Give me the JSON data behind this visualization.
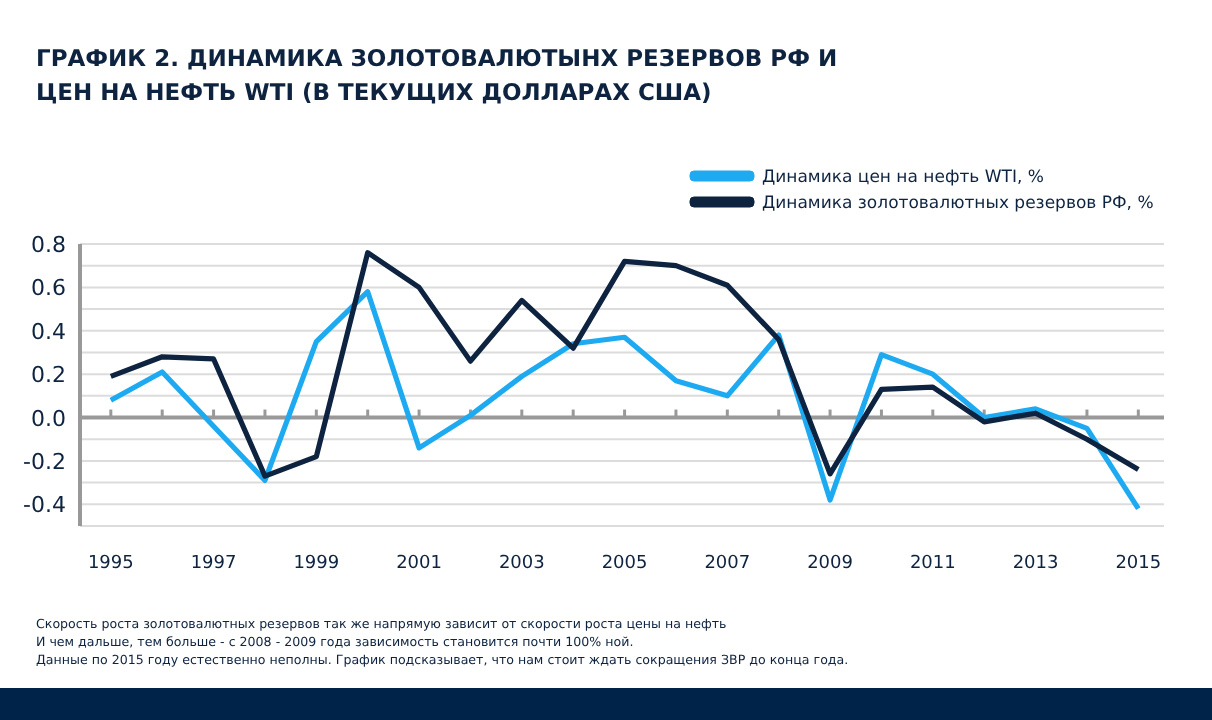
{
  "chart_data": {
    "type": "line",
    "title": "ГРАФИК 2. ДИНАМИКА ЗОЛОТОВАЛЮТЫНХ РЕЗЕРВОВ РФ И\nЦЕН НА НЕФТЬ WTI (В ТЕКУЩИХ ДОЛЛАРАХ США)",
    "x": [
      1995,
      1996,
      1997,
      1998,
      1999,
      2000,
      2001,
      2002,
      2003,
      2004,
      2005,
      2006,
      2007,
      2008,
      2009,
      2010,
      2011,
      2012,
      2013,
      2014,
      2015
    ],
    "series": [
      {
        "name": "Динамика цен на нефть WTI, %",
        "color": "#1eaaf1",
        "values": [
          0.08,
          0.21,
          -0.04,
          -0.29,
          0.35,
          0.58,
          -0.14,
          0.01,
          0.19,
          0.34,
          0.37,
          0.17,
          0.1,
          0.38,
          -0.38,
          0.29,
          0.2,
          0.0,
          0.04,
          -0.05,
          -0.42
        ]
      },
      {
        "name": "Динамика золотовалютных резервов РФ, %",
        "color": "#0d2340",
        "values": [
          0.19,
          0.28,
          0.27,
          -0.27,
          -0.18,
          0.76,
          0.6,
          0.26,
          0.54,
          0.32,
          0.72,
          0.7,
          0.61,
          0.36,
          -0.26,
          0.13,
          0.14,
          -0.02,
          0.02,
          -0.1,
          -0.24
        ]
      }
    ],
    "xlim": [
      1994.4,
      2015.5
    ],
    "xticks": [
      1995,
      {
        "value": 1996,
        "label": null
      },
      1997,
      {
        "value": 1998,
        "label": null
      },
      1999,
      {
        "value": 2000,
        "label": null
      },
      2001,
      {
        "value": 2002,
        "label": null
      },
      2003,
      {
        "value": 2004,
        "label": null
      },
      2005,
      {
        "value": 2006,
        "label": null
      },
      2007,
      {
        "value": 2008,
        "label": null
      },
      2009,
      {
        "value": 2010,
        "label": null
      },
      2011,
      {
        "value": 2012,
        "label": null
      },
      2013,
      {
        "value": 2014,
        "label": null
      },
      2015
    ],
    "ylim": [
      -0.5,
      0.8
    ],
    "yticks": [
      {
        "value": -0.5,
        "label": null
      },
      {
        "value": -0.4,
        "label": "-0.4"
      },
      {
        "value": -0.3,
        "label": null
      },
      {
        "value": -0.2,
        "label": "-0.2"
      },
      {
        "value": -0.1,
        "label": null
      },
      {
        "value": 0,
        "label": "0.0"
      },
      {
        "value": 0.1,
        "label": null
      },
      {
        "value": 0.2,
        "label": "0.2"
      },
      {
        "value": 0.3,
        "label": null
      },
      {
        "value": 0.4,
        "label": "0.4"
      },
      {
        "value": 0.5,
        "label": null
      },
      {
        "value": 0.6,
        "label": "0.6"
      },
      {
        "value": 0.7,
        "label": null
      },
      {
        "value": 0.8,
        "label": "0.8"
      }
    ],
    "grid": "y",
    "legend": "top right",
    "marker": "none",
    "line_style": "solid",
    "annotations": [
      "Скорость роста золотовалютных резервов так же напрямую зависит от скорости роста цены на нефть",
      "И чем дальше,  тем больше - с 2008 - 2009 года зависимость становится почти 100% ной.",
      "Данные по 2015 году естественно неполны. График подсказывает, что нам стоит ждать сокращения ЗВР до конца года."
    ]
  }
}
